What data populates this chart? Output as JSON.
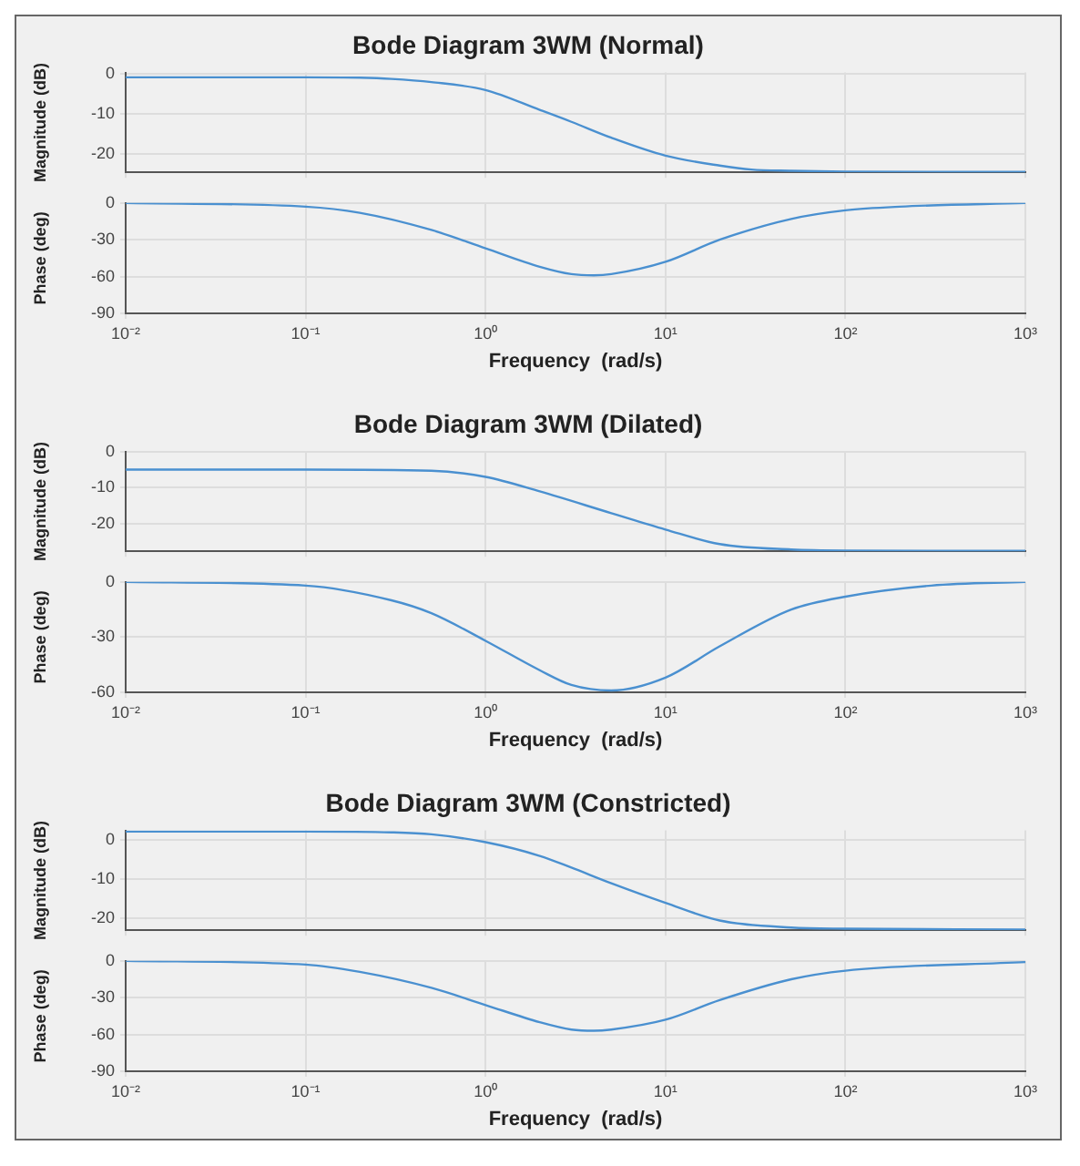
{
  "chart_data": [
    {
      "type": "line",
      "title": "Bode Diagram 3WM (Normal)",
      "ylabel": "Magnitude (dB)",
      "log": "x",
      "grid": true,
      "tick_labels": "y",
      "xlim": [
        0.01,
        1000
      ],
      "xticks": [
        {
          "value": 0.01,
          "label": null
        },
        {
          "value": 0.1,
          "label": null
        },
        {
          "value": 1,
          "label": null
        },
        {
          "value": 10,
          "label": null
        },
        {
          "value": 100,
          "label": null
        },
        {
          "value": 1000,
          "label": null
        }
      ],
      "ylim": [
        -24.7,
        0.4
      ],
      "yticks": [
        0,
        -10,
        -20
      ],
      "x": [
        0.01,
        0.1,
        0.2,
        0.3,
        0.5,
        1,
        2,
        3,
        5,
        10,
        20,
        30,
        50,
        100,
        1000
      ],
      "series": [
        {
          "color": "#4a90d0",
          "values": [
            -0.8,
            -0.8,
            -0.9,
            -1.2,
            -2,
            -4,
            -9,
            -12,
            -16,
            -20.5,
            -23,
            -24,
            -24.3,
            -24.5,
            -24.6
          ]
        }
      ]
    },
    {
      "type": "line",
      "xlabel": "Frequency  (rad/s)",
      "ylabel": "Phase (deg)",
      "log": "x",
      "grid": true,
      "xlim": [
        0.01,
        1000
      ],
      "xticks": [
        {
          "value": 0.01,
          "label": "10⁻²"
        },
        {
          "value": 0.1,
          "label": "10⁻¹"
        },
        {
          "value": 1,
          "label": "10⁰"
        },
        {
          "value": 10,
          "label": "10¹"
        },
        {
          "value": 100,
          "label": "10²"
        },
        {
          "value": 1000,
          "label": "10³"
        }
      ],
      "ylim": [
        -90,
        0
      ],
      "yticks": [
        0,
        -30,
        -60,
        -90
      ],
      "x": [
        0.01,
        0.1,
        0.2,
        0.5,
        1,
        2,
        3,
        4,
        5,
        10,
        20,
        50,
        100,
        200,
        1000
      ],
      "series": [
        {
          "color": "#4a90d0",
          "values": [
            0,
            -3,
            -8,
            -22,
            -37,
            -52,
            -58,
            -59,
            -58,
            -48,
            -30,
            -13,
            -6,
            -3,
            0
          ]
        }
      ]
    },
    {
      "type": "line",
      "title": "Bode Diagram 3WM (Dilated)",
      "ylabel": "Magnitude (dB)",
      "log": "x",
      "grid": true,
      "tick_labels": "y",
      "xlim": [
        0.01,
        1000
      ],
      "xticks": [
        {
          "value": 0.01,
          "label": null
        },
        {
          "value": 0.1,
          "label": null
        },
        {
          "value": 1,
          "label": null
        },
        {
          "value": 10,
          "label": null
        },
        {
          "value": 100,
          "label": null
        },
        {
          "value": 1000,
          "label": null
        }
      ],
      "ylim": [
        -27.5,
        0
      ],
      "yticks": [
        0,
        -10,
        -20
      ],
      "x": [
        0.01,
        0.1,
        0.5,
        1,
        2,
        5,
        10,
        20,
        50,
        100,
        1000
      ],
      "series": [
        {
          "color": "#4a90d0",
          "values": [
            -5,
            -5,
            -5.3,
            -7,
            -11,
            -17,
            -21.5,
            -25.5,
            -27,
            -27.3,
            -27.4
          ]
        }
      ]
    },
    {
      "type": "line",
      "xlabel": "Frequency  (rad/s)",
      "ylabel": "Phase (deg)",
      "log": "x",
      "grid": true,
      "xlim": [
        0.01,
        1000
      ],
      "xticks": [
        {
          "value": 0.01,
          "label": "10⁻²"
        },
        {
          "value": 0.1,
          "label": "10⁻¹"
        },
        {
          "value": 1,
          "label": "10⁰"
        },
        {
          "value": 10,
          "label": "10¹"
        },
        {
          "value": 100,
          "label": "10²"
        },
        {
          "value": 1000,
          "label": "10³"
        }
      ],
      "ylim": [
        -60,
        0
      ],
      "yticks": [
        0,
        -30,
        -60
      ],
      "x": [
        0.01,
        0.1,
        0.3,
        0.5,
        1,
        2,
        3,
        5,
        10,
        20,
        50,
        100,
        300,
        1000
      ],
      "series": [
        {
          "color": "#4a90d0",
          "values": [
            0,
            -2,
            -10,
            -17,
            -32,
            -48,
            -56,
            -59,
            -52,
            -35,
            -15,
            -8,
            -2,
            0
          ]
        }
      ]
    },
    {
      "type": "line",
      "title": "Bode Diagram 3WM (Constricted)",
      "ylabel": "Magnitude (dB)",
      "log": "x",
      "grid": true,
      "tick_labels": "y",
      "xlim": [
        0.01,
        1000
      ],
      "xticks": [
        {
          "value": 0.01,
          "label": null
        },
        {
          "value": 0.1,
          "label": null
        },
        {
          "value": 1,
          "label": null
        },
        {
          "value": 10,
          "label": null
        },
        {
          "value": 100,
          "label": null
        },
        {
          "value": 1000,
          "label": null
        }
      ],
      "ylim": [
        -23,
        2.5
      ],
      "yticks": [
        0,
        -10,
        -20
      ],
      "x": [
        0.01,
        0.1,
        0.3,
        0.5,
        1,
        2,
        3,
        5,
        10,
        20,
        50,
        100,
        1000
      ],
      "series": [
        {
          "color": "#4a90d0",
          "values": [
            2.2,
            2.2,
            2,
            1.5,
            -0.5,
            -4,
            -7,
            -11,
            -16,
            -20.5,
            -22.3,
            -22.6,
            -22.8
          ]
        }
      ]
    },
    {
      "type": "line",
      "xlabel": "Frequency  (rad/s)",
      "ylabel": "Phase (deg)",
      "log": "x",
      "grid": true,
      "xlim": [
        0.01,
        1000
      ],
      "xticks": [
        {
          "value": 0.01,
          "label": "10⁻²"
        },
        {
          "value": 0.1,
          "label": "10⁻¹"
        },
        {
          "value": 1,
          "label": "10⁰"
        },
        {
          "value": 10,
          "label": "10¹"
        },
        {
          "value": 100,
          "label": "10²"
        },
        {
          "value": 1000,
          "label": "10³"
        }
      ],
      "ylim": [
        -90,
        0
      ],
      "yticks": [
        0,
        -30,
        -60,
        -90
      ],
      "x": [
        0.01,
        0.1,
        0.2,
        0.5,
        1,
        2,
        3,
        4,
        5,
        10,
        20,
        50,
        100,
        1000
      ],
      "series": [
        {
          "color": "#4a90d0",
          "values": [
            0,
            -3,
            -9,
            -22,
            -36,
            -50,
            -56,
            -57,
            -56,
            -48,
            -32,
            -15,
            -8,
            -1
          ]
        }
      ]
    }
  ]
}
